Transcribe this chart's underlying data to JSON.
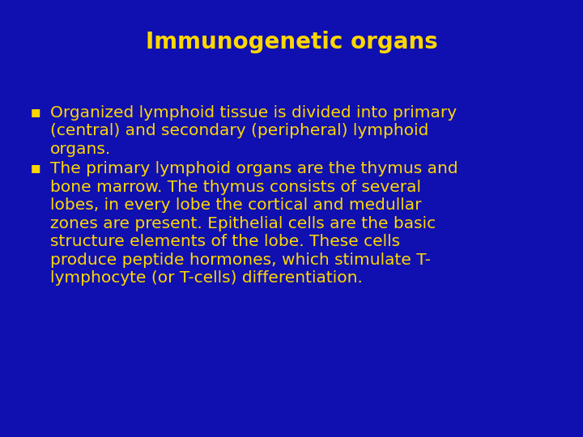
{
  "background_color": "#1010B0",
  "title": "Immunogenetic organs",
  "title_color": "#FFD700",
  "title_fontsize": 20,
  "bullet_color": "#FFD700",
  "bullet_fontsize": 14.5,
  "bullet1_lines": [
    "Organized lymphoid tissue is divided into primary",
    "(central) and secondary (peripheral) lymphoid",
    "organs."
  ],
  "bullet2_lines": [
    "The primary lymphoid organs are the thymus and",
    "bone marrow. The thymus consists of several",
    "lobes, in every lobe the cortical and medullar",
    "zones are present. Epithelial cells are the basic",
    "structure elements of the lobe. These cells",
    "produce peptide hormones, which stimulate T-",
    "lymphocyte (or T-cells) differentiation."
  ],
  "figsize": [
    7.2,
    5.4
  ],
  "dpi": 100
}
